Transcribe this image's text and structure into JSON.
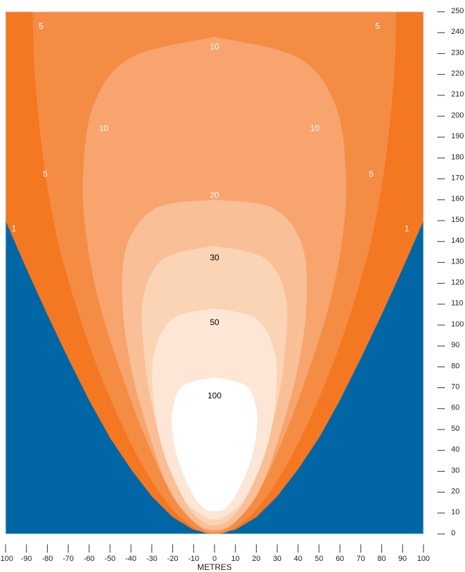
{
  "chart_data": {
    "type": "contour",
    "xlabel": "METRES",
    "ylabel": "",
    "xlim": [
      -100,
      100
    ],
    "ylim": [
      0,
      250
    ],
    "x_ticks": [
      "-100",
      "-90",
      "-80",
      "-70",
      "-60",
      "-50",
      "-40",
      "-30",
      "-20",
      "-10",
      "0",
      "10",
      "20",
      "30",
      "40",
      "50",
      "60",
      "70",
      "80",
      "90",
      "100"
    ],
    "y_ticks": [
      "0",
      "10",
      "20",
      "30",
      "40",
      "50",
      "60",
      "70",
      "80",
      "90",
      "100",
      "110",
      "120",
      "130",
      "140",
      "150",
      "160",
      "170",
      "180",
      "190",
      "200",
      "210",
      "220",
      "230",
      "240",
      "250"
    ],
    "background_color": "#0066a6",
    "levels": [
      {
        "label": "1",
        "color": "#f47722",
        "boundary": [
          [
            -100,
            0
          ],
          [
            -100,
            150
          ],
          [
            -97,
            143
          ],
          [
            -90,
            127
          ],
          [
            -80,
            105
          ],
          [
            -70,
            84
          ],
          [
            -60,
            64
          ],
          [
            -50,
            46
          ],
          [
            -40,
            31
          ],
          [
            -30,
            18
          ],
          [
            -20,
            8
          ],
          [
            -10,
            2
          ],
          [
            0,
            0
          ],
          [
            10,
            2
          ],
          [
            20,
            8
          ],
          [
            30,
            18
          ],
          [
            40,
            31
          ],
          [
            50,
            46
          ],
          [
            60,
            64
          ],
          [
            70,
            84
          ],
          [
            80,
            105
          ],
          [
            90,
            127
          ],
          [
            97,
            143
          ],
          [
            100,
            150
          ],
          [
            100,
            0
          ]
        ]
      },
      {
        "label": "5",
        "color": "#f58c44",
        "boundary": [
          [
            -87,
            250
          ],
          [
            -86,
            220
          ],
          [
            -82,
            180
          ],
          [
            -76,
            145
          ],
          [
            -68,
            115
          ],
          [
            -58,
            85
          ],
          [
            -46,
            56
          ],
          [
            -34,
            32
          ],
          [
            -22,
            14
          ],
          [
            -10,
            3
          ],
          [
            0,
            0
          ],
          [
            10,
            3
          ],
          [
            22,
            14
          ],
          [
            34,
            32
          ],
          [
            46,
            56
          ],
          [
            58,
            85
          ],
          [
            68,
            115
          ],
          [
            76,
            145
          ],
          [
            82,
            180
          ],
          [
            86,
            220
          ],
          [
            87,
            250
          ]
        ]
      },
      {
        "label": "10",
        "color": "#f7a46e",
        "boundary": [
          [
            0,
            238
          ],
          [
            -40,
            228
          ],
          [
            -58,
            205
          ],
          [
            -63,
            170
          ],
          [
            -61,
            140
          ],
          [
            -55,
            110
          ],
          [
            -45,
            78
          ],
          [
            -33,
            46
          ],
          [
            -20,
            18
          ],
          [
            -8,
            4
          ],
          [
            0,
            1
          ],
          [
            8,
            4
          ],
          [
            20,
            18
          ],
          [
            33,
            46
          ],
          [
            45,
            78
          ],
          [
            55,
            110
          ],
          [
            61,
            140
          ],
          [
            63,
            170
          ],
          [
            58,
            205
          ],
          [
            40,
            228
          ],
          [
            0,
            238
          ]
        ]
      },
      {
        "label": "20",
        "color": "#f9bf96",
        "boundary": [
          [
            0,
            160
          ],
          [
            -28,
            156
          ],
          [
            -42,
            138
          ],
          [
            -44,
            110
          ],
          [
            -40,
            80
          ],
          [
            -32,
            50
          ],
          [
            -22,
            22
          ],
          [
            -10,
            6
          ],
          [
            0,
            2
          ],
          [
            10,
            6
          ],
          [
            22,
            22
          ],
          [
            32,
            50
          ],
          [
            40,
            80
          ],
          [
            44,
            110
          ],
          [
            42,
            138
          ],
          [
            28,
            156
          ],
          [
            0,
            160
          ]
        ]
      },
      {
        "label": "30",
        "color": "#fbd3b5",
        "boundary": [
          [
            0,
            138
          ],
          [
            -24,
            132
          ],
          [
            -34,
            114
          ],
          [
            -34,
            90
          ],
          [
            -30,
            62
          ],
          [
            -22,
            34
          ],
          [
            -12,
            12
          ],
          [
            0,
            4
          ],
          [
            12,
            12
          ],
          [
            22,
            34
          ],
          [
            30,
            62
          ],
          [
            34,
            90
          ],
          [
            34,
            114
          ],
          [
            24,
            132
          ],
          [
            0,
            138
          ]
        ]
      },
      {
        "label": "50",
        "color": "#fde6d5",
        "boundary": [
          [
            0,
            108
          ],
          [
            -20,
            103
          ],
          [
            -29,
            86
          ],
          [
            -29,
            62
          ],
          [
            -24,
            38
          ],
          [
            -14,
            16
          ],
          [
            -4,
            8
          ],
          [
            0,
            7
          ],
          [
            4,
            8
          ],
          [
            14,
            16
          ],
          [
            24,
            38
          ],
          [
            29,
            62
          ],
          [
            29,
            86
          ],
          [
            20,
            103
          ],
          [
            0,
            108
          ]
        ]
      },
      {
        "label": "100",
        "color": "#ffffff",
        "boundary": [
          [
            0,
            75
          ],
          [
            -15,
            71
          ],
          [
            -20,
            60
          ],
          [
            -20,
            48
          ],
          [
            -17,
            34
          ],
          [
            -11,
            20
          ],
          [
            -5,
            12
          ],
          [
            0,
            11
          ],
          [
            5,
            12
          ],
          [
            11,
            20
          ],
          [
            17,
            34
          ],
          [
            20,
            48
          ],
          [
            20,
            60
          ],
          [
            15,
            71
          ],
          [
            0,
            75
          ]
        ]
      }
    ],
    "contour_labels": [
      {
        "text": "5",
        "x": -83,
        "y": 243,
        "color": "#ffffff"
      },
      {
        "text": "5",
        "x": 78,
        "y": 243,
        "color": "#ffffff"
      },
      {
        "text": "10",
        "x": 0,
        "y": 233,
        "color": "#ffffff"
      },
      {
        "text": "10",
        "x": -53,
        "y": 194,
        "color": "#ffffff"
      },
      {
        "text": "10",
        "x": 48,
        "y": 194,
        "color": "#ffffff"
      },
      {
        "text": "5",
        "x": -81,
        "y": 172,
        "color": "#ffffff"
      },
      {
        "text": "5",
        "x": 75,
        "y": 172,
        "color": "#ffffff"
      },
      {
        "text": "20",
        "x": 0,
        "y": 162,
        "color": "#ffffff"
      },
      {
        "text": "1",
        "x": -96,
        "y": 146,
        "color": "#ffffff"
      },
      {
        "text": "1",
        "x": 92,
        "y": 146,
        "color": "#ffffff"
      },
      {
        "text": "30",
        "x": 0,
        "y": 132,
        "color": "#000000"
      },
      {
        "text": "50",
        "x": 0,
        "y": 101,
        "color": "#000000"
      },
      {
        "text": "100",
        "x": 0,
        "y": 66,
        "color": "#000000"
      }
    ],
    "grid": false
  }
}
